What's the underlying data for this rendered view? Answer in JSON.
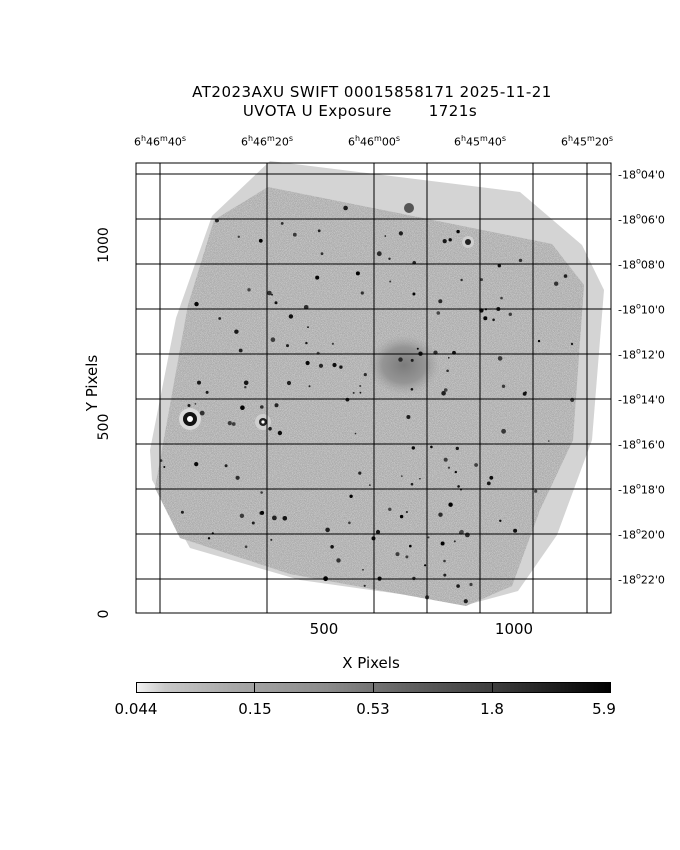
{
  "title": {
    "line1": "AT2023AXU SWIFT 00015858171 2025-11-21",
    "line2": "UVOTA U Exposure       1721s"
  },
  "axes": {
    "xlabel": "X Pixels",
    "ylabel": "Y Pixels",
    "x_ticks": [
      "500",
      "1000"
    ],
    "y_ticks": [
      "0",
      "500",
      "1000"
    ],
    "ra_ticks": [
      {
        "h": "6",
        "m": "46",
        "s": "40"
      },
      {
        "h": "6",
        "m": "46",
        "s": "20"
      },
      {
        "h": "6",
        "m": "46",
        "s": "00"
      },
      {
        "h": "6",
        "m": "45",
        "s": "40"
      },
      {
        "h": "6",
        "m": "45",
        "s": "20"
      }
    ],
    "dec_ticks": [
      {
        "d": "-18",
        "m": "04"
      },
      {
        "d": "-18",
        "m": "06"
      },
      {
        "d": "-18",
        "m": "08"
      },
      {
        "d": "-18",
        "m": "10"
      },
      {
        "d": "-18",
        "m": "12"
      },
      {
        "d": "-18",
        "m": "14"
      },
      {
        "d": "-18",
        "m": "16"
      },
      {
        "d": "-18",
        "m": "18"
      },
      {
        "d": "-18",
        "m": "20"
      },
      {
        "d": "-18",
        "m": "22"
      }
    ]
  },
  "colorbar": {
    "labels": [
      "0.044",
      "0.15",
      "0.53",
      "1.8",
      "5.9"
    ]
  },
  "colors": {
    "image_gray": "#a8a8a8",
    "grid": "#000000"
  }
}
